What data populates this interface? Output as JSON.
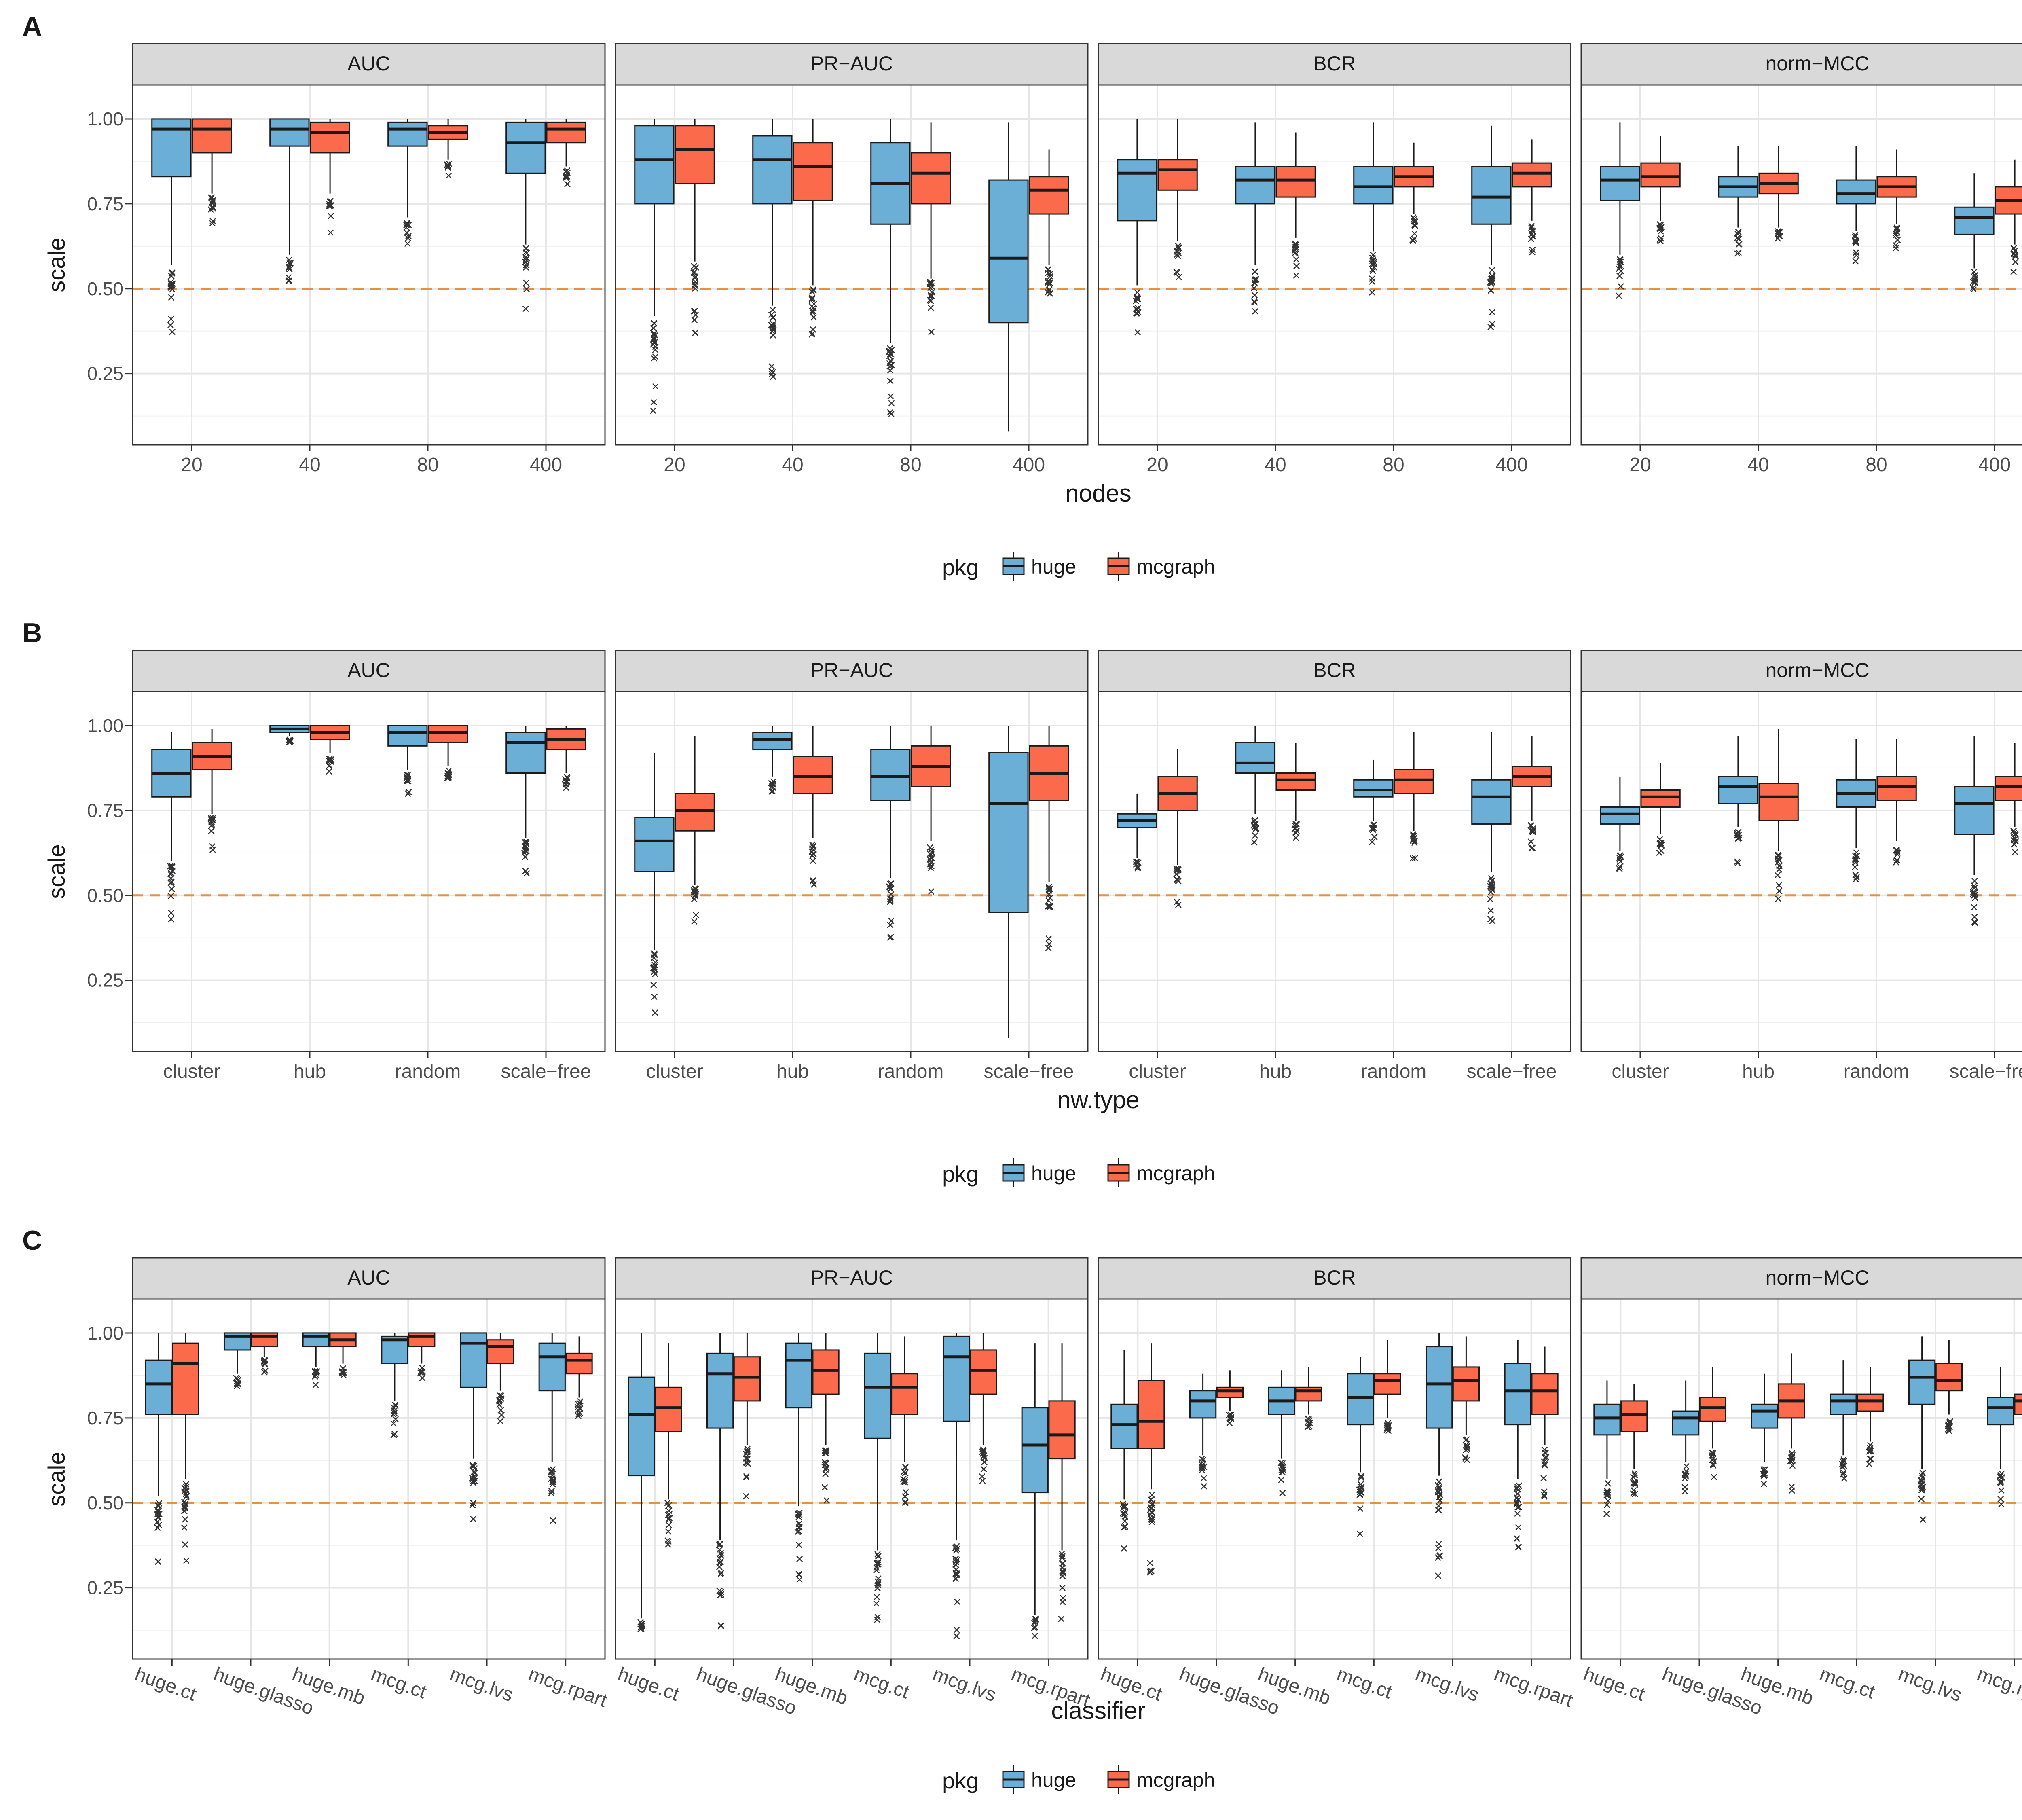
{
  "figure": {
    "reference_line": 0.5,
    "y_axis": {
      "label": "scale",
      "ticks": [
        0.25,
        0.5,
        0.75,
        1.0
      ],
      "tick_labels": [
        "0.25",
        "0.50",
        "0.75",
        "1.00"
      ]
    },
    "metrics": [
      "AUC",
      "PR−AUC",
      "BCR",
      "norm−MCC"
    ],
    "legend": {
      "title": "pkg",
      "entries": [
        "huge",
        "mcgraph"
      ]
    },
    "colors": {
      "huge": "#6baed6",
      "mcgraph": "#fb6a4a",
      "reference_line": "#e6913b",
      "strip_fill": "#d9d9d9"
    }
  },
  "chart_data": [
    {
      "type": "boxplot",
      "panel_label": "A",
      "xlabel": "nodes",
      "ylabel": "scale",
      "ylim": [
        0.04,
        1.1
      ],
      "facets": [
        "AUC",
        "PR−AUC",
        "BCR",
        "norm−MCC"
      ],
      "categories": [
        "20",
        "40",
        "80",
        "400"
      ],
      "series": [
        {
          "name": "huge",
          "boxes": [
            [
              [
                0.57,
                0.83,
                0.97,
                1.0,
                1.0
              ],
              [
                0.6,
                0.92,
                0.97,
                1.0,
                1.0
              ],
              [
                0.71,
                0.92,
                0.97,
                0.99,
                1.0
              ],
              [
                0.63,
                0.84,
                0.93,
                0.99,
                1.0
              ]
            ],
            [
              [
                0.42,
                0.75,
                0.88,
                0.98,
                1.0
              ],
              [
                0.45,
                0.75,
                0.88,
                0.95,
                1.0
              ],
              [
                0.34,
                0.69,
                0.81,
                0.93,
                1.0
              ],
              [
                0.08,
                0.4,
                0.59,
                0.82,
                0.99
              ]
            ],
            [
              [
                0.51,
                0.7,
                0.84,
                0.88,
                1.0
              ],
              [
                0.57,
                0.75,
                0.82,
                0.86,
                0.99
              ],
              [
                0.61,
                0.75,
                0.8,
                0.86,
                0.99
              ],
              [
                0.57,
                0.69,
                0.77,
                0.86,
                0.98
              ]
            ],
            [
              [
                0.6,
                0.76,
                0.82,
                0.86,
                0.99
              ],
              [
                0.68,
                0.77,
                0.8,
                0.83,
                0.92
              ],
              [
                0.67,
                0.75,
                0.78,
                0.82,
                0.92
              ],
              [
                0.56,
                0.66,
                0.71,
                0.74,
                0.84
              ]
            ]
          ]
        },
        {
          "name": "mcgraph",
          "boxes": [
            [
              [
                0.78,
                0.9,
                0.97,
                1.0,
                1.0
              ],
              [
                0.78,
                0.9,
                0.96,
                0.99,
                1.0
              ],
              [
                0.88,
                0.94,
                0.96,
                0.98,
                1.0
              ],
              [
                0.86,
                0.93,
                0.97,
                0.99,
                1.0
              ]
            ],
            [
              [
                0.58,
                0.81,
                0.91,
                0.98,
                1.0
              ],
              [
                0.51,
                0.76,
                0.86,
                0.93,
                1.0
              ],
              [
                0.53,
                0.75,
                0.84,
                0.9,
                0.99
              ],
              [
                0.57,
                0.72,
                0.79,
                0.83,
                0.91
              ]
            ],
            [
              [
                0.64,
                0.79,
                0.85,
                0.88,
                1.0
              ],
              [
                0.65,
                0.77,
                0.82,
                0.86,
                0.96
              ],
              [
                0.72,
                0.8,
                0.83,
                0.86,
                0.93
              ],
              [
                0.7,
                0.8,
                0.84,
                0.87,
                0.94
              ]
            ],
            [
              [
                0.7,
                0.8,
                0.83,
                0.87,
                0.95
              ],
              [
                0.68,
                0.78,
                0.81,
                0.84,
                0.92
              ],
              [
                0.69,
                0.77,
                0.8,
                0.83,
                0.91
              ],
              [
                0.63,
                0.72,
                0.76,
                0.8,
                0.88
              ]
            ]
          ]
        }
      ]
    },
    {
      "type": "boxplot",
      "panel_label": "B",
      "xlabel": "nw.type",
      "ylabel": "scale",
      "ylim": [
        0.04,
        1.1
      ],
      "facets": [
        "AUC",
        "PR−AUC",
        "BCR",
        "norm−MCC"
      ],
      "categories": [
        "cluster",
        "hub",
        "random",
        "scale−free"
      ],
      "series": [
        {
          "name": "huge",
          "boxes": [
            [
              [
                0.6,
                0.79,
                0.86,
                0.93,
                0.98
              ],
              [
                0.97,
                0.98,
                0.99,
                1.0,
                1.0
              ],
              [
                0.87,
                0.94,
                0.98,
                1.0,
                1.0
              ],
              [
                0.67,
                0.86,
                0.95,
                0.98,
                1.0
              ]
            ],
            [
              [
                0.34,
                0.57,
                0.66,
                0.73,
                0.92
              ],
              [
                0.85,
                0.93,
                0.96,
                0.98,
                1.0
              ],
              [
                0.55,
                0.78,
                0.85,
                0.93,
                1.0
              ],
              [
                0.08,
                0.45,
                0.77,
                0.92,
                1.0
              ]
            ],
            [
              [
                0.61,
                0.7,
                0.72,
                0.74,
                0.8
              ],
              [
                0.74,
                0.86,
                0.89,
                0.95,
                1.0
              ],
              [
                0.72,
                0.79,
                0.81,
                0.84,
                0.9
              ],
              [
                0.57,
                0.71,
                0.79,
                0.84,
                0.98
              ]
            ],
            [
              [
                0.63,
                0.71,
                0.74,
                0.76,
                0.85
              ],
              [
                0.7,
                0.77,
                0.82,
                0.85,
                0.97
              ],
              [
                0.64,
                0.76,
                0.8,
                0.84,
                0.96
              ],
              [
                0.56,
                0.68,
                0.77,
                0.82,
                0.97
              ]
            ]
          ]
        },
        {
          "name": "mcgraph",
          "boxes": [
            [
              [
                0.74,
                0.87,
                0.91,
                0.95,
                0.99
              ],
              [
                0.92,
                0.96,
                0.98,
                1.0,
                1.0
              ],
              [
                0.88,
                0.95,
                0.98,
                1.0,
                1.0
              ],
              [
                0.86,
                0.93,
                0.96,
                0.99,
                1.0
              ]
            ],
            [
              [
                0.53,
                0.69,
                0.75,
                0.8,
                0.97
              ],
              [
                0.67,
                0.8,
                0.85,
                0.91,
                1.0
              ],
              [
                0.66,
                0.82,
                0.88,
                0.94,
                1.0
              ],
              [
                0.54,
                0.78,
                0.86,
                0.94,
                1.0
              ]
            ],
            [
              [
                0.59,
                0.75,
                0.8,
                0.85,
                0.93
              ],
              [
                0.72,
                0.81,
                0.84,
                0.86,
                0.95
              ],
              [
                0.69,
                0.8,
                0.84,
                0.87,
                0.98
              ],
              [
                0.72,
                0.82,
                0.85,
                0.88,
                0.97
              ]
            ],
            [
              [
                0.68,
                0.76,
                0.79,
                0.81,
                0.89
              ],
              [
                0.63,
                0.72,
                0.79,
                0.83,
                0.99
              ],
              [
                0.66,
                0.78,
                0.82,
                0.85,
                0.96
              ],
              [
                0.7,
                0.78,
                0.82,
                0.85,
                0.95
              ]
            ]
          ]
        }
      ]
    },
    {
      "type": "boxplot",
      "panel_label": "C",
      "xlabel": "classifier",
      "ylabel": "scale",
      "ylim": [
        0.04,
        1.1
      ],
      "facets": [
        "AUC",
        "PR−AUC",
        "BCR",
        "norm−MCC"
      ],
      "categories": [
        "huge.ct",
        "huge.glasso",
        "huge.mb",
        "mcg.ct",
        "mcg.lvs",
        "mcg.rpart"
      ],
      "series": [
        {
          "name": "huge",
          "boxes": [
            [
              [
                0.52,
                0.76,
                0.85,
                0.92,
                1.0
              ],
              [
                0.88,
                0.95,
                0.99,
                1.0,
                1.0
              ],
              [
                0.9,
                0.96,
                0.99,
                1.0,
                1.0
              ],
              [
                0.8,
                0.91,
                0.98,
                0.99,
                1.0
              ],
              [
                0.63,
                0.84,
                0.97,
                1.0,
                1.0
              ],
              [
                0.62,
                0.83,
                0.93,
                0.97,
                1.0
              ]
            ],
            [
              [
                0.16,
                0.58,
                0.76,
                0.87,
                1.0
              ],
              [
                0.39,
                0.72,
                0.88,
                0.94,
                1.0
              ],
              [
                0.49,
                0.78,
                0.92,
                0.97,
                1.0
              ],
              [
                0.36,
                0.69,
                0.84,
                0.94,
                1.0
              ],
              [
                0.39,
                0.74,
                0.93,
                0.99,
                1.0
              ],
              [
                0.17,
                0.53,
                0.67,
                0.78,
                0.97
              ]
            ],
            [
              [
                0.51,
                0.66,
                0.73,
                0.79,
                0.95
              ],
              [
                0.64,
                0.75,
                0.8,
                0.83,
                0.88
              ],
              [
                0.63,
                0.76,
                0.8,
                0.84,
                0.89
              ],
              [
                0.59,
                0.73,
                0.81,
                0.88,
                0.93
              ],
              [
                0.58,
                0.72,
                0.85,
                0.96,
                1.0
              ],
              [
                0.57,
                0.73,
                0.83,
                0.91,
                0.98
              ]
            ],
            [
              [
                0.57,
                0.7,
                0.75,
                0.79,
                0.86
              ],
              [
                0.62,
                0.7,
                0.75,
                0.77,
                0.86
              ],
              [
                0.62,
                0.72,
                0.77,
                0.79,
                0.88
              ],
              [
                0.64,
                0.76,
                0.8,
                0.82,
                0.92
              ],
              [
                0.6,
                0.79,
                0.87,
                0.92,
                0.99
              ],
              [
                0.6,
                0.73,
                0.78,
                0.81,
                0.9
              ]
            ]
          ]
        },
        {
          "name": "mcgraph",
          "boxes": [
            [
              [
                0.57,
                0.76,
                0.91,
                0.97,
                1.0
              ],
              [
                0.93,
                0.96,
                0.99,
                1.0,
                1.0
              ],
              [
                0.91,
                0.96,
                0.98,
                1.0,
                1.0
              ],
              [
                0.91,
                0.96,
                0.99,
                1.0,
                1.0
              ],
              [
                0.83,
                0.91,
                0.96,
                0.98,
                1.0
              ],
              [
                0.81,
                0.88,
                0.92,
                0.94,
                0.99
              ]
            ],
            [
              [
                0.51,
                0.71,
                0.78,
                0.84,
                0.97
              ],
              [
                0.67,
                0.8,
                0.87,
                0.93,
                1.0
              ],
              [
                0.67,
                0.82,
                0.89,
                0.95,
                1.0
              ],
              [
                0.62,
                0.76,
                0.84,
                0.88,
                0.99
              ],
              [
                0.67,
                0.82,
                0.89,
                0.95,
                1.0
              ],
              [
                0.36,
                0.63,
                0.7,
                0.8,
                0.97
              ]
            ],
            [
              [
                0.54,
                0.66,
                0.74,
                0.86,
                0.97
              ],
              [
                0.77,
                0.81,
                0.83,
                0.84,
                0.89
              ],
              [
                0.76,
                0.8,
                0.83,
                0.84,
                0.9
              ],
              [
                0.75,
                0.82,
                0.86,
                0.88,
                0.98
              ],
              [
                0.7,
                0.8,
                0.86,
                0.9,
                0.99
              ],
              [
                0.67,
                0.76,
                0.83,
                0.88,
                0.96
              ]
            ],
            [
              [
                0.6,
                0.71,
                0.76,
                0.8,
                0.85
              ],
              [
                0.66,
                0.74,
                0.78,
                0.81,
                0.9
              ],
              [
                0.66,
                0.75,
                0.8,
                0.85,
                0.94
              ],
              [
                0.68,
                0.77,
                0.8,
                0.82,
                0.9
              ],
              [
                0.76,
                0.83,
                0.86,
                0.91,
                0.98
              ],
              [
                0.68,
                0.76,
                0.8,
                0.82,
                0.91
              ]
            ]
          ]
        }
      ]
    }
  ]
}
